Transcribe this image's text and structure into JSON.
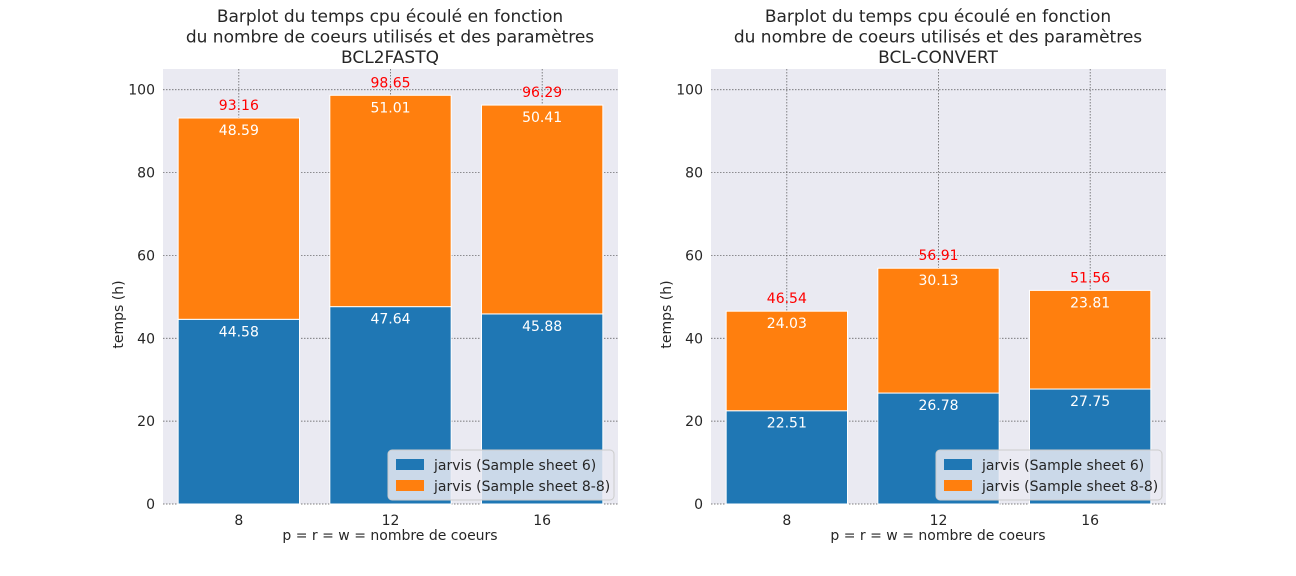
{
  "colors": {
    "series_0": "#1f77b4",
    "series_1": "#ff7f0e",
    "total_label": "#ff0000",
    "plot_bg": "#eaeaf2"
  },
  "chart_data": [
    {
      "type": "bar",
      "stacked": true,
      "title_lines": [
        "Barplot du temps cpu écoulé en fonction",
        "du nombre de coeurs utilisés et des paramètres",
        "BCL2FASTQ"
      ],
      "xlabel": "p = r = w = nombre de coeurs",
      "ylabel": "temps (h)",
      "categories": [
        "8",
        "12",
        "16"
      ],
      "ylim": [
        0,
        105
      ],
      "yticks": [
        "0",
        "20",
        "40",
        "60",
        "80",
        "100"
      ],
      "grid": true,
      "legend_position": "lower-right",
      "series": [
        {
          "name": "jarvis (Sample sheet 6)",
          "values": [
            44.58,
            47.64,
            45.88
          ],
          "labels": [
            "44.58",
            "47.64",
            "45.88"
          ]
        },
        {
          "name": "jarvis (Sample sheet 8-8)",
          "values": [
            48.59,
            51.01,
            50.41
          ],
          "labels": [
            "48.59",
            "51.01",
            "50.41"
          ]
        }
      ],
      "totals": [
        93.16,
        98.65,
        96.29
      ],
      "total_labels": [
        "93.16",
        "98.65",
        "96.29"
      ]
    },
    {
      "type": "bar",
      "stacked": true,
      "title_lines": [
        "Barplot du temps cpu écoulé en fonction",
        "du nombre de coeurs utilisés et des paramètres",
        "BCL-CONVERT"
      ],
      "xlabel": "p = r = w = nombre de coeurs",
      "ylabel": "temps (h)",
      "categories": [
        "8",
        "12",
        "16"
      ],
      "ylim": [
        0,
        105
      ],
      "yticks": [
        "0",
        "20",
        "40",
        "60",
        "80",
        "100"
      ],
      "grid": true,
      "legend_position": "lower-right",
      "series": [
        {
          "name": "jarvis (Sample sheet 6)",
          "values": [
            22.51,
            26.78,
            27.75
          ],
          "labels": [
            "22.51",
            "26.78",
            "27.75"
          ]
        },
        {
          "name": "jarvis (Sample sheet 8-8)",
          "values": [
            24.03,
            30.13,
            23.81
          ],
          "labels": [
            "24.03",
            "30.13",
            "23.81"
          ]
        }
      ],
      "totals": [
        46.54,
        56.91,
        51.56
      ],
      "total_labels": [
        "46.54",
        "56.91",
        "51.56"
      ]
    }
  ]
}
